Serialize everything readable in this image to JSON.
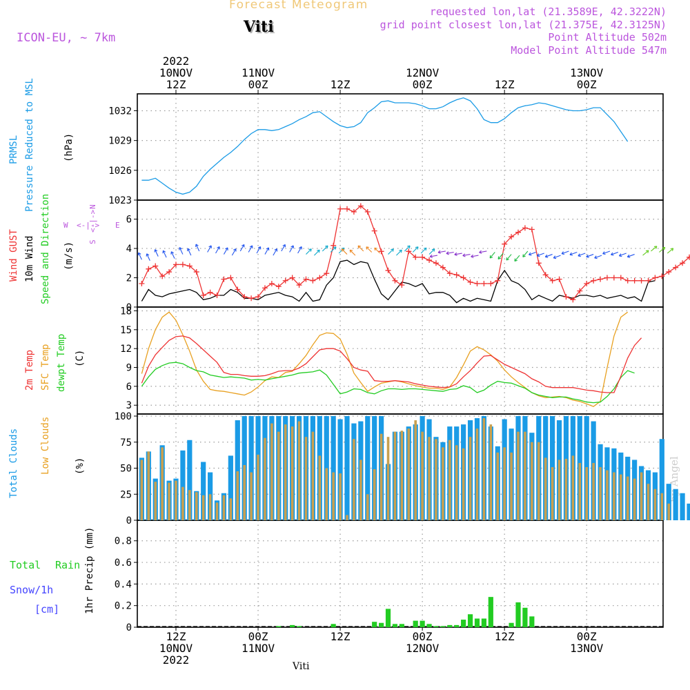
{
  "header": {
    "title": "Forecast Meteogram",
    "location": "Viti",
    "model": "ICON-EU, ~ 7km",
    "requested": "requested lon,lat (21.3589E, 42.3222N)",
    "grid": "grid point closest lon,lat (21.375E, 42.3125N)",
    "point_alt": "Point Altitude 502m",
    "model_alt": "Model Point Altitude 547m",
    "footer_location": "Viti",
    "credit": "by Angel"
  },
  "time_axis": {
    "top_labels": [
      {
        "t": 0,
        "lines": [
          "2022",
          "10NOV",
          "12Z"
        ]
      },
      {
        "t": 12,
        "lines": [
          "11NOV",
          "00Z"
        ]
      },
      {
        "t": 24,
        "lines": [
          "12Z"
        ]
      },
      {
        "t": 36,
        "lines": [
          "12NOV",
          "00Z"
        ]
      },
      {
        "t": 48,
        "lines": [
          "12Z"
        ]
      },
      {
        "t": 60,
        "lines": [
          "13NOV",
          "00Z"
        ]
      }
    ],
    "bottom_labels": [
      {
        "t": 0,
        "lines": [
          "12Z",
          "10NOV",
          "2022"
        ]
      },
      {
        "t": 12,
        "lines": [
          "00Z",
          "11NOV"
        ]
      },
      {
        "t": 24,
        "lines": [
          "12Z"
        ]
      },
      {
        "t": 36,
        "lines": [
          "00Z",
          "12NOV"
        ]
      },
      {
        "t": 48,
        "lines": [
          "12Z"
        ]
      },
      {
        "t": 60,
        "lines": [
          "00Z",
          "13NOV"
        ]
      }
    ]
  },
  "panel_labels": {
    "prmsl": [
      "PRMSL",
      "Pressure Reduced to MSL",
      "(hPa)"
    ],
    "wind": [
      "Wind GUST",
      "10m Wind",
      "Speed and Direction",
      "(m/s)"
    ],
    "compass": [
      "N",
      "S",
      "W",
      "E"
    ],
    "temp": [
      "2m Temp",
      "SFC Temp",
      "dewpt Temp",
      "(C)"
    ],
    "clouds": [
      "Total Clouds",
      "Low Clouds",
      "(%)"
    ],
    "precip": [
      "Total",
      "Rain",
      "Snow/1h",
      "[cm]",
      "1hr Precip (mm)"
    ]
  },
  "colors": {
    "pressure": "#1a9be6",
    "gust": "#ee3333",
    "wind": "#000000",
    "t2m": "#ee3333",
    "sfc": "#e8a020",
    "dewpt": "#22cc22",
    "total_cloud": "#1a9be6",
    "low_cloud": "#c8a050",
    "rain": "#22cc22",
    "snow": "#4444ff",
    "model_text": "#bb55dd",
    "title_text": "#f0c878"
  },
  "chart_data": [
    {
      "type": "line",
      "title": "PRMSL Pressure Reduced to MSL",
      "ylabel": "(hPa)",
      "ylim": [
        1023,
        1033.7
      ],
      "yticks": [
        1023,
        1026,
        1029,
        1032
      ],
      "x_start_hours": -5,
      "x_step_hours": 1,
      "series": [
        {
          "name": "PRMSL",
          "values": [
            1025.0,
            1025.0,
            1025.2,
            1024.7,
            1024.2,
            1023.8,
            1023.6,
            1023.8,
            1024.4,
            1025.4,
            1026.1,
            1026.7,
            1027.3,
            1027.8,
            1028.4,
            1029.1,
            1029.7,
            1030.1,
            1030.1,
            1030.0,
            1030.1,
            1030.4,
            1030.7,
            1031.1,
            1031.4,
            1031.8,
            1031.9,
            1031.4,
            1030.9,
            1030.5,
            1030.3,
            1030.4,
            1030.8,
            1031.8,
            1032.3,
            1032.9,
            1033.0,
            1032.8,
            1032.8,
            1032.8,
            1032.7,
            1032.5,
            1032.2,
            1032.2,
            1032.4,
            1032.8,
            1033.1,
            1033.3,
            1033.0,
            1032.2,
            1031.1,
            1030.8,
            1030.8,
            1031.2,
            1031.8,
            1032.3,
            1032.5,
            1032.6,
            1032.8,
            1032.7,
            1032.5,
            1032.3,
            1032.1,
            1032.0,
            1032.0,
            1032.1,
            1032.3,
            1032.3,
            1031.6,
            1030.9,
            1029.9,
            1028.9
          ]
        }
      ]
    },
    {
      "type": "line",
      "title": "Wind GUST / 10m Wind Speed and Direction",
      "ylabel": "(m/s)",
      "ylim": [
        0,
        7.3
      ],
      "yticks": [
        0,
        2,
        4,
        6
      ],
      "x_start_hours": -5,
      "x_step_hours": 1,
      "series": [
        {
          "name": "Wind GUST",
          "values": [
            1.6,
            2.6,
            2.8,
            2.1,
            2.4,
            2.9,
            2.9,
            2.8,
            2.4,
            0.8,
            1.0,
            0.8,
            1.9,
            2.0,
            1.2,
            0.7,
            0.6,
            0.7,
            1.3,
            1.6,
            1.4,
            1.8,
            2.0,
            1.5,
            1.9,
            1.8,
            2.0,
            2.3,
            4.2,
            6.7,
            6.7,
            6.5,
            6.9,
            6.5,
            5.2,
            3.8,
            2.5,
            1.8,
            1.5,
            3.8,
            3.4,
            3.4,
            3.2,
            3.0,
            2.7,
            2.3,
            2.2,
            2.0,
            1.7,
            1.6,
            1.6,
            1.6,
            1.8,
            4.3,
            4.8,
            5.1,
            5.4,
            5.3,
            3.0,
            2.2,
            1.8,
            1.9,
            0.7,
            0.5,
            1.1,
            1.6,
            1.8,
            1.9,
            2.0,
            2.0,
            2.0,
            1.8,
            1.8,
            1.8,
            1.8,
            2.0,
            2.1,
            2.4,
            2.7,
            3.0,
            3.4,
            3.8,
            4.4
          ]
        },
        {
          "name": "10m Wind",
          "values": [
            0.4,
            1.2,
            0.8,
            0.7,
            0.9,
            1.0,
            1.1,
            1.2,
            1.0,
            0.5,
            0.6,
            0.8,
            0.8,
            1.2,
            1.0,
            0.6,
            0.6,
            0.5,
            0.8,
            0.9,
            1.0,
            0.8,
            0.7,
            0.4,
            1.0,
            0.4,
            0.5,
            1.5,
            2.0,
            3.1,
            3.2,
            2.9,
            3.1,
            3.0,
            1.9,
            0.9,
            0.5,
            1.1,
            1.7,
            1.6,
            1.4,
            1.6,
            0.9,
            1.0,
            1.0,
            0.8,
            0.3,
            0.6,
            0.4,
            0.6,
            0.5,
            0.4,
            1.8,
            2.5,
            1.8,
            1.6,
            1.2,
            0.5,
            0.8,
            0.6,
            0.4,
            0.8,
            0.7,
            0.6,
            0.8,
            0.8,
            0.7,
            0.8,
            0.6,
            0.7,
            0.8,
            0.6,
            0.7,
            0.4,
            1.7,
            1.8
          ]
        }
      ]
    },
    {
      "type": "line",
      "title": "2m Temp / SFC Temp / dewpt Temp",
      "ylabel": "(C)",
      "ylim": [
        1.6,
        18.6
      ],
      "yticks": [
        3,
        6,
        9,
        12,
        15,
        18
      ],
      "x_start_hours": -5,
      "x_step_hours": 1,
      "series": [
        {
          "name": "2m Temp",
          "values": [
            6.5,
            9.2,
            11.0,
            12.2,
            13.3,
            13.9,
            14.0,
            13.7,
            12.8,
            11.8,
            10.8,
            9.8,
            8.2,
            7.9,
            7.9,
            7.7,
            7.6,
            7.6,
            7.7,
            8.0,
            8.4,
            8.5,
            8.5,
            8.9,
            9.6,
            10.7,
            11.8,
            12.0,
            12.0,
            11.6,
            10.4,
            9.0,
            8.6,
            8.4,
            6.9,
            6.8,
            6.8,
            6.9,
            6.8,
            6.7,
            6.4,
            6.2,
            6.0,
            5.9,
            5.8,
            5.9,
            6.4,
            7.5,
            8.5,
            9.7,
            10.8,
            10.9,
            10.2,
            9.5,
            9.0,
            8.5,
            8.0,
            7.2,
            6.7,
            6.0,
            5.8,
            5.8,
            5.8,
            5.8,
            5.6,
            5.4,
            5.3,
            5.1,
            5.0,
            5.0,
            7.6,
            10.5,
            12.5,
            13.7
          ]
        },
        {
          "name": "SFC Temp",
          "values": [
            8.0,
            12.0,
            15.0,
            17.0,
            17.8,
            16.5,
            14.2,
            11.6,
            8.6,
            6.8,
            5.5,
            5.3,
            5.2,
            5.0,
            4.8,
            4.6,
            5.1,
            5.9,
            6.9,
            7.5,
            7.4,
            8.2,
            8.4,
            9.6,
            10.9,
            12.6,
            14.1,
            14.5,
            14.4,
            13.5,
            11.1,
            8.1,
            6.6,
            5.2,
            5.9,
            6.5,
            6.7,
            6.9,
            6.7,
            6.4,
            6.1,
            5.9,
            5.7,
            5.7,
            5.5,
            5.9,
            7.4,
            9.4,
            11.6,
            12.3,
            11.8,
            11.0,
            10.0,
            8.6,
            7.5,
            6.6,
            5.8,
            5.0,
            4.5,
            4.2,
            4.3,
            4.4,
            4.2,
            3.8,
            3.6,
            3.2,
            2.8,
            3.6,
            9.0,
            14.0,
            17.0,
            17.8
          ]
        },
        {
          "name": "dewpt Temp",
          "values": [
            6.0,
            7.5,
            8.7,
            9.3,
            9.7,
            9.8,
            9.6,
            9.0,
            8.5,
            8.3,
            7.8,
            7.6,
            7.4,
            7.5,
            7.4,
            7.3,
            7.0,
            7.1,
            7.0,
            7.2,
            7.4,
            7.6,
            7.8,
            8.1,
            8.2,
            8.3,
            8.6,
            7.8,
            6.3,
            4.8,
            5.1,
            5.6,
            5.5,
            5.0,
            4.8,
            5.3,
            5.6,
            5.6,
            5.5,
            5.6,
            5.6,
            5.5,
            5.4,
            5.3,
            5.2,
            5.5,
            5.6,
            6.1,
            5.8,
            5.0,
            5.4,
            6.2,
            6.8,
            6.6,
            6.5,
            6.1,
            5.7,
            5.0,
            4.6,
            4.4,
            4.2,
            4.3,
            4.3,
            4.0,
            3.8,
            3.5,
            3.4,
            3.5,
            4.4,
            5.6,
            7.4,
            8.5,
            8.1
          ]
        }
      ]
    },
    {
      "type": "bar",
      "title": "Total Clouds / Low Clouds",
      "ylabel": "(%)",
      "ylim": [
        0,
        102
      ],
      "yticks": [
        0,
        25,
        50,
        75,
        100
      ],
      "x_start_hours": -5,
      "x_step_hours": 1,
      "series": [
        {
          "name": "Total Clouds",
          "values": [
            60,
            66,
            40,
            72,
            38,
            40,
            67,
            77,
            28,
            56,
            46,
            19,
            26,
            62,
            96,
            100,
            100,
            100,
            100,
            100,
            100,
            100,
            100,
            100,
            100,
            100,
            100,
            100,
            100,
            97,
            100,
            93,
            95,
            100,
            100,
            100,
            54,
            85,
            85,
            90,
            92,
            100,
            97,
            80,
            75,
            90,
            90,
            92,
            96,
            98,
            100,
            90,
            71,
            97,
            88,
            100,
            100,
            84,
            100,
            100,
            100,
            96,
            100,
            100,
            100,
            100,
            95,
            73,
            70,
            69,
            65,
            61,
            58,
            52,
            48,
            46,
            78,
            35,
            30,
            26,
            16,
            8
          ]
        },
        {
          "name": "Low Clouds",
          "values": [
            58,
            66,
            37,
            70,
            36,
            38,
            32,
            29,
            27,
            24,
            25,
            17,
            24,
            21,
            47,
            53,
            46,
            63,
            79,
            93,
            85,
            92,
            90,
            95,
            80,
            85,
            62,
            50,
            46,
            45,
            5,
            78,
            58,
            25,
            49,
            83,
            80,
            85,
            86,
            88,
            96,
            85,
            80,
            78,
            70,
            77,
            72,
            69,
            80,
            88,
            98,
            92,
            65,
            70,
            65,
            85,
            85,
            75,
            75,
            60,
            51,
            58,
            59,
            62,
            55,
            51,
            55,
            51,
            48,
            46,
            44,
            42,
            40,
            46,
            35,
            30,
            26,
            16
          ]
        }
      ]
    },
    {
      "type": "bar",
      "title": "1hr Precip",
      "ylabel": "1hr Precip (mm)",
      "ylim": [
        0,
        0.99
      ],
      "yticks": [
        0,
        0.2,
        0.4,
        0.6,
        0.8
      ],
      "x_start_hours": -5,
      "x_step_hours": 1,
      "series": [
        {
          "name": "Total Rain",
          "values": [
            0,
            0,
            0,
            0,
            0,
            0,
            0,
            0,
            0,
            0,
            0,
            0,
            0,
            0,
            0,
            0,
            0,
            0,
            0,
            0,
            0.01,
            0,
            0.02,
            0.01,
            0,
            0,
            0,
            0,
            0.03,
            0,
            0,
            0,
            0,
            0,
            0.05,
            0.04,
            0.17,
            0.03,
            0.03,
            0,
            0.06,
            0.06,
            0.03,
            0.01,
            0.01,
            0.02,
            0.02,
            0.07,
            0.12,
            0.08,
            0.08,
            0.28,
            0,
            0,
            0.04,
            0.23,
            0.18,
            0.1,
            0,
            0,
            0,
            0,
            0,
            0,
            0,
            0,
            0,
            0,
            0,
            0,
            0,
            0,
            0,
            0,
            0,
            0,
            0,
            0,
            0,
            0,
            0,
            0,
            0
          ]
        }
      ]
    }
  ]
}
